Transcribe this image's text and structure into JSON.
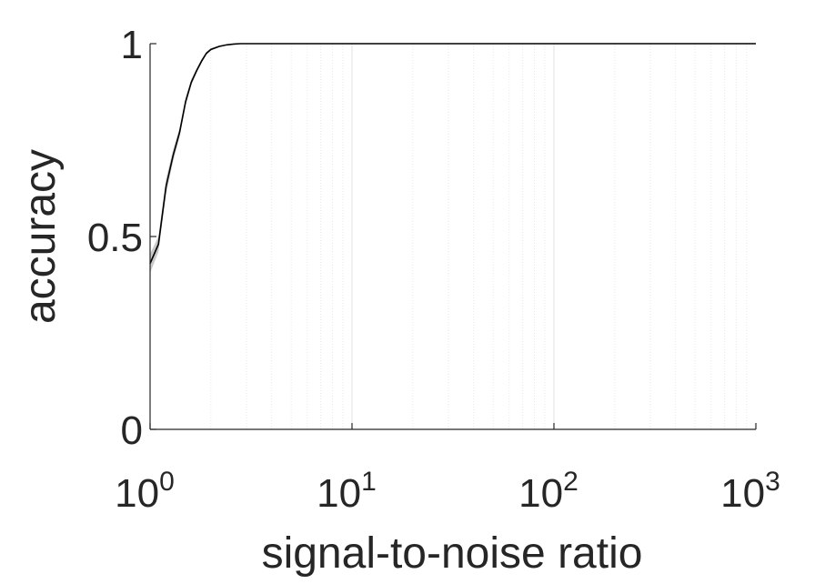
{
  "chart_data": {
    "type": "line",
    "title": "",
    "xlabel": "signal-to-noise ratio",
    "ylabel": "accuracy",
    "x_scale": "log",
    "xlim": [
      1,
      1000
    ],
    "ylim": [
      0,
      1
    ],
    "x_ticks": [
      {
        "value": 1,
        "base": "10",
        "exp": "0"
      },
      {
        "value": 10,
        "base": "10",
        "exp": "1"
      },
      {
        "value": 100,
        "base": "10",
        "exp": "2"
      },
      {
        "value": 1000,
        "base": "10",
        "exp": "3"
      }
    ],
    "y_ticks": [
      {
        "value": 0,
        "label": "0"
      },
      {
        "value": 0.5,
        "label": "0.5"
      },
      {
        "value": 1,
        "label": "1"
      }
    ],
    "grid": {
      "x_major": true,
      "x_minor": true,
      "y": false
    },
    "series": [
      {
        "x": [
          1.0,
          1.1,
          1.2,
          1.3,
          1.4,
          1.5,
          1.6,
          1.7,
          1.8,
          1.9,
          2.0,
          2.2,
          2.4,
          2.6,
          2.8,
          3.0,
          3.5,
          5,
          10,
          100,
          1000
        ],
        "y": [
          0.43,
          0.48,
          0.63,
          0.71,
          0.77,
          0.85,
          0.9,
          0.93,
          0.955,
          0.975,
          0.985,
          0.993,
          0.997,
          0.999,
          1.0,
          1.0,
          1.0,
          1.0,
          1.0,
          1.0,
          1.0
        ],
        "band": [
          0.025,
          0.02,
          0.02,
          0.015,
          0.012,
          0.01,
          0.008,
          0.006,
          0.005,
          0.004,
          0.003,
          0.002,
          0.001,
          0.0,
          0.0,
          0.0,
          0.0,
          0.0,
          0.0,
          0.0,
          0.0
        ],
        "color": "#000000",
        "band_color": "#c8c8c8"
      }
    ]
  }
}
